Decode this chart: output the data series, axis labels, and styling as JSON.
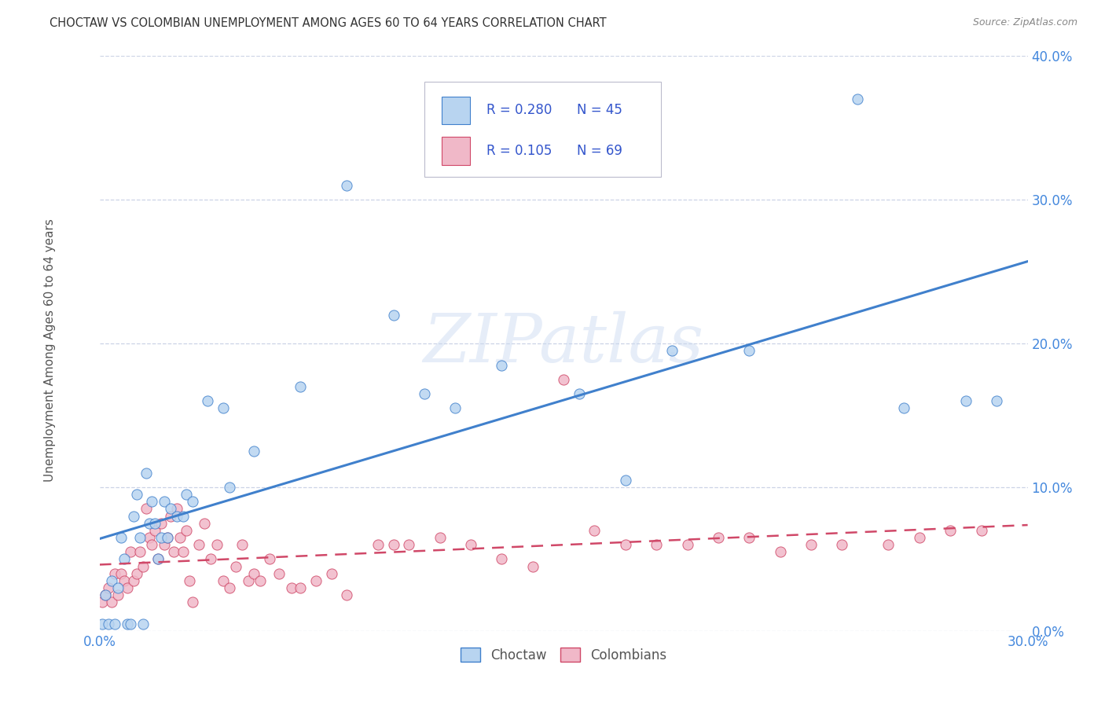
{
  "title": "CHOCTAW VS COLOMBIAN UNEMPLOYMENT AMONG AGES 60 TO 64 YEARS CORRELATION CHART",
  "source": "Source: ZipAtlas.com",
  "ylabel": "Unemployment Among Ages 60 to 64 years",
  "watermark": "ZIPatlas",
  "choctaw_R": 0.28,
  "choctaw_N": 45,
  "colombian_R": 0.105,
  "colombian_N": 69,
  "choctaw_color": "#b8d4f0",
  "colombian_color": "#f0b8c8",
  "choctaw_line_color": "#4080cc",
  "colombian_line_color": "#d04868",
  "legend_color": "#3355cc",
  "title_color": "#333333",
  "axis_label_color": "#555555",
  "tick_color": "#4488dd",
  "grid_color": "#c0c8e0",
  "background_color": "#ffffff",
  "xlim": [
    0.0,
    0.3
  ],
  "ylim": [
    0.0,
    0.4
  ],
  "xticks": [
    0.0,
    0.3
  ],
  "yticks": [
    0.0,
    0.1,
    0.2,
    0.3,
    0.4
  ],
  "choctaw_x": [
    0.001,
    0.002,
    0.003,
    0.004,
    0.005,
    0.006,
    0.007,
    0.008,
    0.009,
    0.01,
    0.011,
    0.012,
    0.013,
    0.014,
    0.015,
    0.016,
    0.017,
    0.018,
    0.019,
    0.02,
    0.021,
    0.022,
    0.023,
    0.025,
    0.027,
    0.028,
    0.03,
    0.035,
    0.04,
    0.042,
    0.05,
    0.065,
    0.08,
    0.095,
    0.105,
    0.115,
    0.13,
    0.155,
    0.17,
    0.185,
    0.21,
    0.245,
    0.26,
    0.28,
    0.29
  ],
  "choctaw_y": [
    0.005,
    0.025,
    0.005,
    0.035,
    0.005,
    0.03,
    0.065,
    0.05,
    0.005,
    0.005,
    0.08,
    0.095,
    0.065,
    0.005,
    0.11,
    0.075,
    0.09,
    0.075,
    0.05,
    0.065,
    0.09,
    0.065,
    0.085,
    0.08,
    0.08,
    0.095,
    0.09,
    0.16,
    0.155,
    0.1,
    0.125,
    0.17,
    0.31,
    0.22,
    0.165,
    0.155,
    0.185,
    0.165,
    0.105,
    0.195,
    0.195,
    0.37,
    0.155,
    0.16,
    0.16
  ],
  "colombian_x": [
    0.001,
    0.002,
    0.003,
    0.004,
    0.005,
    0.006,
    0.007,
    0.008,
    0.009,
    0.01,
    0.011,
    0.012,
    0.013,
    0.014,
    0.015,
    0.016,
    0.017,
    0.018,
    0.019,
    0.02,
    0.021,
    0.022,
    0.023,
    0.024,
    0.025,
    0.026,
    0.027,
    0.028,
    0.029,
    0.03,
    0.032,
    0.034,
    0.036,
    0.038,
    0.04,
    0.042,
    0.044,
    0.046,
    0.048,
    0.05,
    0.052,
    0.055,
    0.058,
    0.062,
    0.065,
    0.07,
    0.075,
    0.08,
    0.09,
    0.095,
    0.1,
    0.11,
    0.12,
    0.13,
    0.14,
    0.15,
    0.16,
    0.17,
    0.18,
    0.19,
    0.2,
    0.21,
    0.22,
    0.23,
    0.24,
    0.255,
    0.265,
    0.275,
    0.285
  ],
  "colombian_y": [
    0.02,
    0.025,
    0.03,
    0.02,
    0.04,
    0.025,
    0.04,
    0.035,
    0.03,
    0.055,
    0.035,
    0.04,
    0.055,
    0.045,
    0.085,
    0.065,
    0.06,
    0.07,
    0.05,
    0.075,
    0.06,
    0.065,
    0.08,
    0.055,
    0.085,
    0.065,
    0.055,
    0.07,
    0.035,
    0.02,
    0.06,
    0.075,
    0.05,
    0.06,
    0.035,
    0.03,
    0.045,
    0.06,
    0.035,
    0.04,
    0.035,
    0.05,
    0.04,
    0.03,
    0.03,
    0.035,
    0.04,
    0.025,
    0.06,
    0.06,
    0.06,
    0.065,
    0.06,
    0.05,
    0.045,
    0.175,
    0.07,
    0.06,
    0.06,
    0.06,
    0.065,
    0.065,
    0.055,
    0.06,
    0.06,
    0.06,
    0.065,
    0.07,
    0.07
  ]
}
